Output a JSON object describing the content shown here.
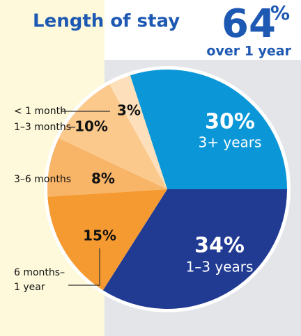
{
  "chart_data": {
    "type": "pie",
    "title": "Length of stay",
    "highlight": "64",
    "highlight_unit": "%",
    "highlight_note": "over 1 year",
    "categories": [
      "3+ years",
      "1–3 years",
      "6 months–\n1 year",
      "3–6 months",
      "1–3 months",
      "< 1 month"
    ],
    "values": [
      30,
      34,
      15,
      8,
      10,
      3
    ],
    "value_labels": [
      "30%",
      "34%",
      "15%",
      "8%",
      "10%",
      "3%"
    ],
    "colors": [
      "#0b97d7",
      "#213b93",
      "#f59a31",
      "#f8b467",
      "#fbc98c",
      "#fde0bb"
    ]
  }
}
